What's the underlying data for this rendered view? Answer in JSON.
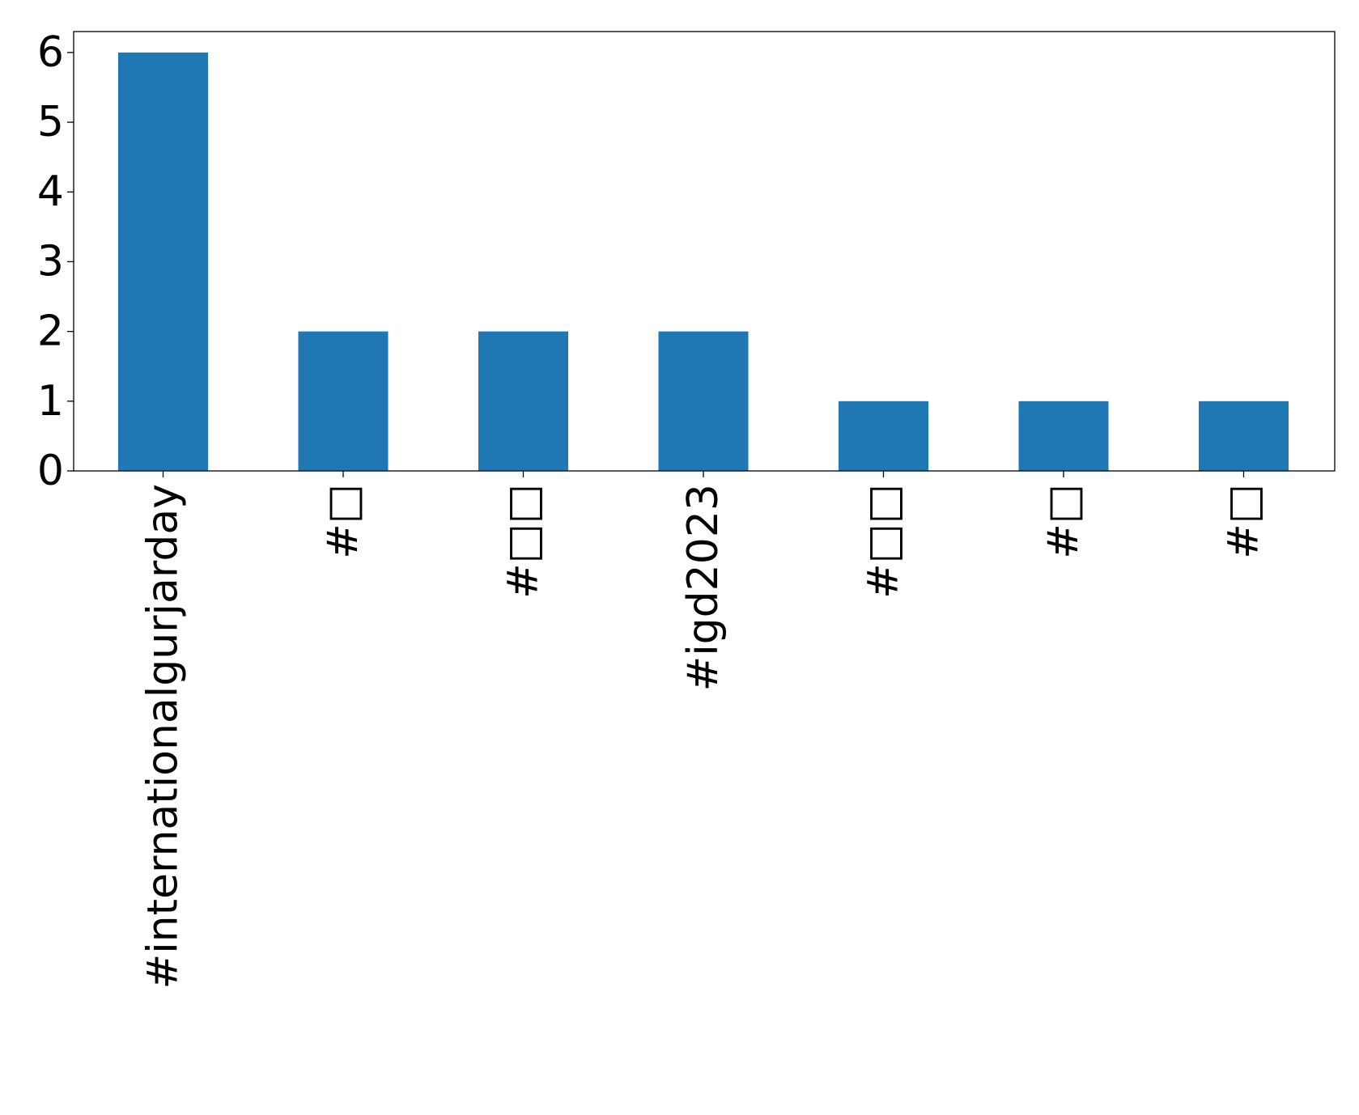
{
  "chart_data": {
    "type": "bar",
    "categories": [
      "#internationalgurjarday",
      "#□",
      "#□□",
      "#igd2023",
      "#□□",
      "#□",
      "#□"
    ],
    "values": [
      6,
      2,
      2,
      2,
      1,
      1,
      1
    ],
    "ylim": [
      0,
      6.3
    ],
    "yticks": [
      0,
      1,
      2,
      3,
      4,
      5,
      6
    ],
    "title": "",
    "xlabel": "",
    "ylabel": "",
    "bar_color": "#1f77b4",
    "grid": false,
    "legend": "none"
  }
}
